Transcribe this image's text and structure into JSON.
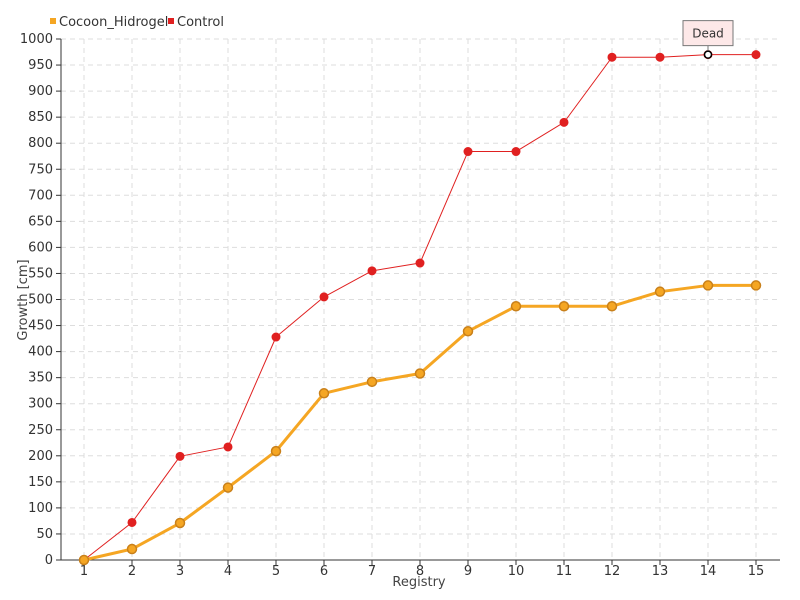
{
  "chart_data": {
    "type": "line",
    "title": "",
    "xlabel": "Registry",
    "ylabel": "Growth [cm]",
    "x": [
      1,
      2,
      3,
      4,
      5,
      6,
      7,
      8,
      9,
      10,
      11,
      12,
      13,
      14,
      15
    ],
    "xlim": [
      1,
      15
    ],
    "ylim": [
      0,
      1000
    ],
    "y_ticks": [
      0,
      50,
      100,
      150,
      200,
      250,
      300,
      350,
      400,
      450,
      500,
      550,
      600,
      650,
      700,
      750,
      800,
      850,
      900,
      950,
      1000
    ],
    "grid": true,
    "legend_position": "top-left",
    "series": [
      {
        "name": "Cocoon_Hidrogel",
        "color": "#f5a623",
        "values": [
          0,
          21,
          71,
          139,
          209,
          320,
          342,
          358,
          439,
          487,
          487,
          487,
          515,
          527,
          527
        ]
      },
      {
        "name": "Control",
        "color": "#e02020",
        "values": [
          0,
          72,
          199,
          217,
          428,
          505,
          555,
          570,
          784,
          784,
          840,
          965,
          965,
          970,
          970
        ]
      }
    ],
    "annotations": [
      {
        "text": "Dead",
        "series": "Control",
        "x": 14,
        "y": 970
      }
    ]
  }
}
